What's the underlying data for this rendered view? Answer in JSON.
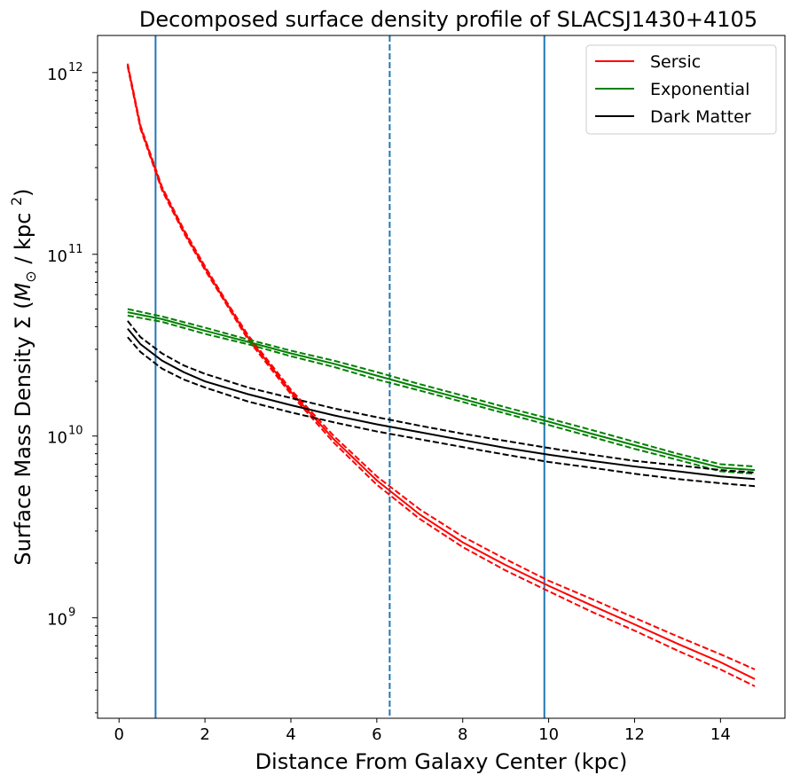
{
  "chart_data": {
    "type": "line",
    "title": "Decomposed surface density profile of SLACSJ1430+4105",
    "xlabel": "Distance From Galaxy Center (kpc)",
    "ylabel": "Surface Mass Density Σ (M☉ / kpc ²)",
    "ylabel_parts": {
      "prefix": "Surface Mass Density Σ (",
      "sym": "M",
      "sub": "⊙",
      "mid": " / kpc ",
      "sup": "2",
      "suffix": ")"
    },
    "yscale": "log",
    "xlim": [
      -0.5,
      15.5
    ],
    "ylim": [
      280000000.0,
      1600000000000.0
    ],
    "xticks": [
      0,
      2,
      4,
      6,
      8,
      10,
      12,
      14
    ],
    "xtick_labels": [
      "0",
      "2",
      "4",
      "6",
      "8",
      "10",
      "12",
      "14"
    ],
    "yticks": [
      {
        "value": 1000000000.0,
        "base": "10",
        "exp": "9"
      },
      {
        "value": 10000000000.0,
        "base": "10",
        "exp": "10"
      },
      {
        "value": 100000000000.0,
        "base": "10",
        "exp": "11"
      },
      {
        "value": 1000000000000.0,
        "base": "10",
        "exp": "12"
      }
    ],
    "legend_position": "top-right",
    "vlines": [
      {
        "x": 0.85,
        "style": "solid",
        "color": "#1f77b4"
      },
      {
        "x": 6.3,
        "style": "dashed",
        "color": "#1f77b4"
      },
      {
        "x": 9.9,
        "style": "solid",
        "color": "#1f77b4"
      }
    ],
    "series": [
      {
        "name": "Sersic",
        "color": "#ff0000",
        "x": [
          0.2,
          0.5,
          1,
          1.5,
          2,
          2.5,
          3,
          4,
          5,
          6,
          7,
          8,
          9,
          10,
          11,
          12,
          13,
          14,
          14.8
        ],
        "y": [
          1100000000000.0,
          500000000000.0,
          230000000000.0,
          135000000000.0,
          84000000000.0,
          54000000000.0,
          35000000000.0,
          17500000000.0,
          9600000000.0,
          5700000000.0,
          3700000000.0,
          2600000000.0,
          1950000000.0,
          1500000000.0,
          1170000000.0,
          920000000.0,
          720000000.0,
          570000000.0,
          460000000.0
        ],
        "upper": [
          1120000000000.0,
          510000000000.0,
          235000000000.0,
          138000000000.0,
          86000000000.0,
          55000000000.0,
          36000000000.0,
          18000000000.0,
          10000000000.0,
          6000000000.0,
          3950000000.0,
          2800000000.0,
          2100000000.0,
          1600000000.0,
          1270000000.0,
          1000000000.0,
          790000000.0,
          630000000.0,
          520000000.0
        ],
        "lower": [
          1080000000000.0,
          490000000000.0,
          225000000000.0,
          132000000000.0,
          82000000000.0,
          53000000000.0,
          34000000000.0,
          17000000000.0,
          9200000000.0,
          5400000000.0,
          3500000000.0,
          2450000000.0,
          1820000000.0,
          1400000000.0,
          1080000000.0,
          850000000.0,
          660000000.0,
          520000000.0,
          420000000.0
        ]
      },
      {
        "name": "Exponential",
        "color": "#008000",
        "x": [
          0.2,
          1,
          2,
          3,
          4,
          5,
          6,
          7,
          8,
          9,
          10,
          11,
          12,
          13,
          14,
          14.8
        ],
        "y": [
          48000000000.0,
          44000000000.0,
          38000000000.0,
          33000000000.0,
          28500000000.0,
          25000000000.0,
          21500000000.0,
          18500000000.0,
          16000000000.0,
          13800000000.0,
          12000000000.0,
          10300000000.0,
          8900000000.0,
          7700000000.0,
          6700000000.0,
          6500000000.0
        ],
        "upper": [
          50000000000.0,
          45500000000.0,
          39500000000.0,
          34000000000.0,
          29500000000.0,
          26000000000.0,
          22500000000.0,
          19300000000.0,
          16700000000.0,
          14400000000.0,
          12500000000.0,
          10800000000.0,
          9300000000.0,
          8000000000.0,
          7000000000.0,
          6800000000.0
        ],
        "lower": [
          46000000000.0,
          42500000000.0,
          36500000000.0,
          32000000000.0,
          27500000000.0,
          24000000000.0,
          20500000000.0,
          17800000000.0,
          15400000000.0,
          13300000000.0,
          11500000000.0,
          9900000000.0,
          8500000000.0,
          7400000000.0,
          6400000000.0,
          6200000000.0
        ]
      },
      {
        "name": "Dark Matter",
        "color": "#000000",
        "x": [
          0.2,
          0.5,
          1,
          1.5,
          2,
          3,
          4,
          5,
          6,
          7,
          8,
          9,
          10,
          11,
          12,
          13,
          14,
          14.8
        ],
        "y": [
          39000000000.0,
          32000000000.0,
          26000000000.0,
          22500000000.0,
          20000000000.0,
          17000000000.0,
          14800000000.0,
          13000000000.0,
          11600000000.0,
          10500000000.0,
          9500000000.0,
          8600000000.0,
          7900000000.0,
          7300000000.0,
          6800000000.0,
          6400000000.0,
          6000000000.0,
          5800000000.0
        ],
        "upper": [
          43000000000.0,
          35000000000.0,
          28500000000.0,
          24500000000.0,
          22000000000.0,
          18500000000.0,
          16200000000.0,
          14200000000.0,
          12700000000.0,
          11400000000.0,
          10300000000.0,
          9400000000.0,
          8600000000.0,
          7900000000.0,
          7300000000.0,
          6900000000.0,
          6500000000.0,
          6300000000.0
        ],
        "lower": [
          35000000000.0,
          29000000000.0,
          23500000000.0,
          20500000000.0,
          18500000000.0,
          15500000000.0,
          13500000000.0,
          11900000000.0,
          10600000000.0,
          9600000000.0,
          8700000000.0,
          7900000000.0,
          7200000000.0,
          6700000000.0,
          6200000000.0,
          5800000000.0,
          5500000000.0,
          5300000000.0
        ]
      }
    ]
  }
}
